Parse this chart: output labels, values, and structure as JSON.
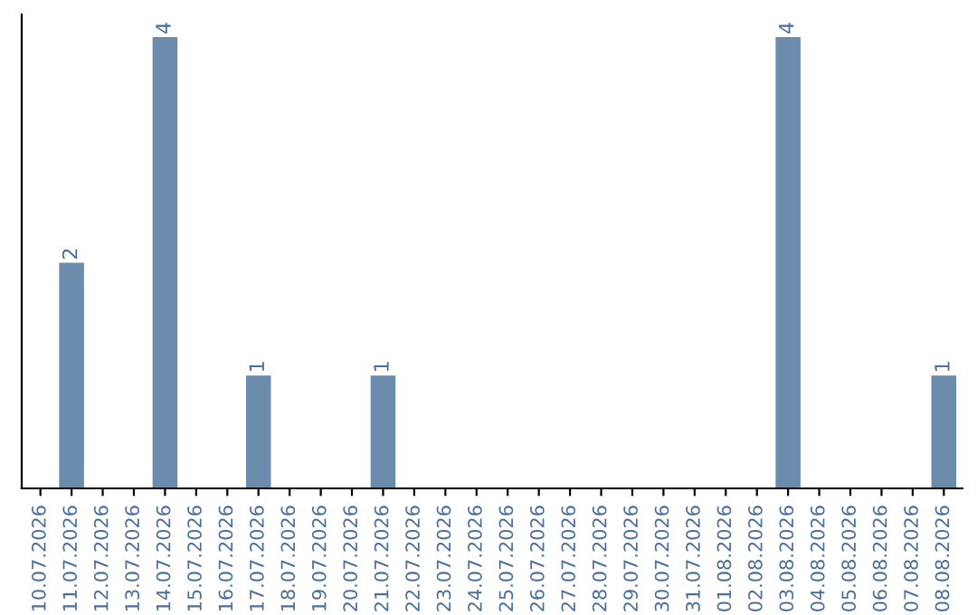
{
  "chart_data": {
    "type": "bar",
    "categories": [
      "10.07.2026",
      "11.07.2026",
      "12.07.2026",
      "13.07.2026",
      "14.07.2026",
      "15.07.2026",
      "16.07.2026",
      "17.07.2026",
      "18.07.2026",
      "19.07.2026",
      "20.07.2026",
      "21.07.2026",
      "22.07.2026",
      "23.07.2026",
      "24.07.2026",
      "25.07.2026",
      "26.07.2026",
      "27.07.2026",
      "28.07.2026",
      "29.07.2026",
      "30.07.2026",
      "31.07.2026",
      "01.08.2026",
      "02.08.2026",
      "03.08.2026",
      "04.08.2026",
      "05.08.2026",
      "06.08.2026",
      "07.08.2026",
      "08.08.2026"
    ],
    "values": [
      0,
      2,
      0,
      0,
      4,
      0,
      0,
      1,
      0,
      0,
      0,
      1,
      0,
      0,
      0,
      0,
      0,
      0,
      0,
      0,
      0,
      0,
      0,
      0,
      4,
      0,
      0,
      0,
      0,
      1
    ],
    "value_labels": [
      null,
      "2",
      null,
      null,
      "4",
      null,
      null,
      "1",
      null,
      null,
      null,
      "1",
      null,
      null,
      null,
      null,
      null,
      null,
      null,
      null,
      null,
      null,
      null,
      null,
      "4",
      null,
      null,
      null,
      null,
      "1"
    ],
    "color": "#6b8cad",
    "ylim": [
      0,
      4.2
    ],
    "tick_labels": "x",
    "grid": false,
    "legend": false
  }
}
